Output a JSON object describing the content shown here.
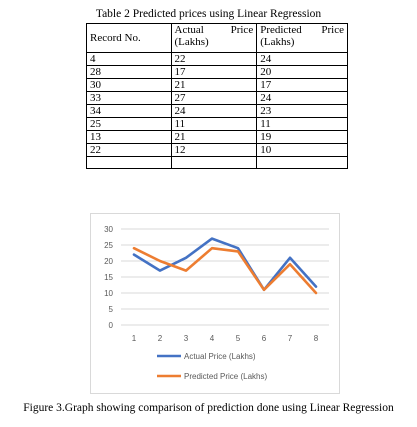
{
  "table": {
    "caption": "Table 2 Predicted prices using Linear Regression",
    "headers": {
      "record": "Record No.",
      "actual_line1_a": "Actual",
      "actual_line1_b": "Price",
      "actual_line2": "(Lakhs)",
      "predicted_line1_a": "Predicted",
      "predicted_line1_b": "Price",
      "predicted_line2": "(Lakhs)"
    },
    "rows": [
      {
        "record": "4",
        "actual": "22",
        "predicted": "24"
      },
      {
        "record": "28",
        "actual": "17",
        "predicted": "20"
      },
      {
        "record": "30",
        "actual": "21",
        "predicted": "17"
      },
      {
        "record": "33",
        "actual": "27",
        "predicted": "24"
      },
      {
        "record": "34",
        "actual": "24",
        "predicted": "23"
      },
      {
        "record": "25",
        "actual": "11",
        "predicted": "11"
      },
      {
        "record": "13",
        "actual": "21",
        "predicted": "19"
      },
      {
        "record": "22",
        "actual": "12",
        "predicted": "10"
      },
      {
        "record": "",
        "actual": "",
        "predicted": ""
      }
    ]
  },
  "chart_data": {
    "type": "line",
    "title": "",
    "xlabel": "",
    "ylabel": "",
    "x": [
      1,
      2,
      3,
      4,
      5,
      6,
      7,
      8
    ],
    "ylim": [
      0,
      30
    ],
    "yticks": [
      0,
      5,
      10,
      15,
      20,
      25,
      30
    ],
    "grid": true,
    "legend_position": "bottom",
    "series": [
      {
        "name": "Actual Price (Lakhs)",
        "values": [
          22,
          17,
          21,
          27,
          24,
          11,
          21,
          12
        ],
        "color": "#4472c4"
      },
      {
        "name": "Predicted Price (Lakhs)",
        "values": [
          24,
          20,
          17,
          24,
          23,
          11,
          19,
          10
        ],
        "color": "#ed7d31"
      }
    ]
  },
  "figure_caption": "Figure 3.Graph showing comparison of prediction done using Linear Regression"
}
